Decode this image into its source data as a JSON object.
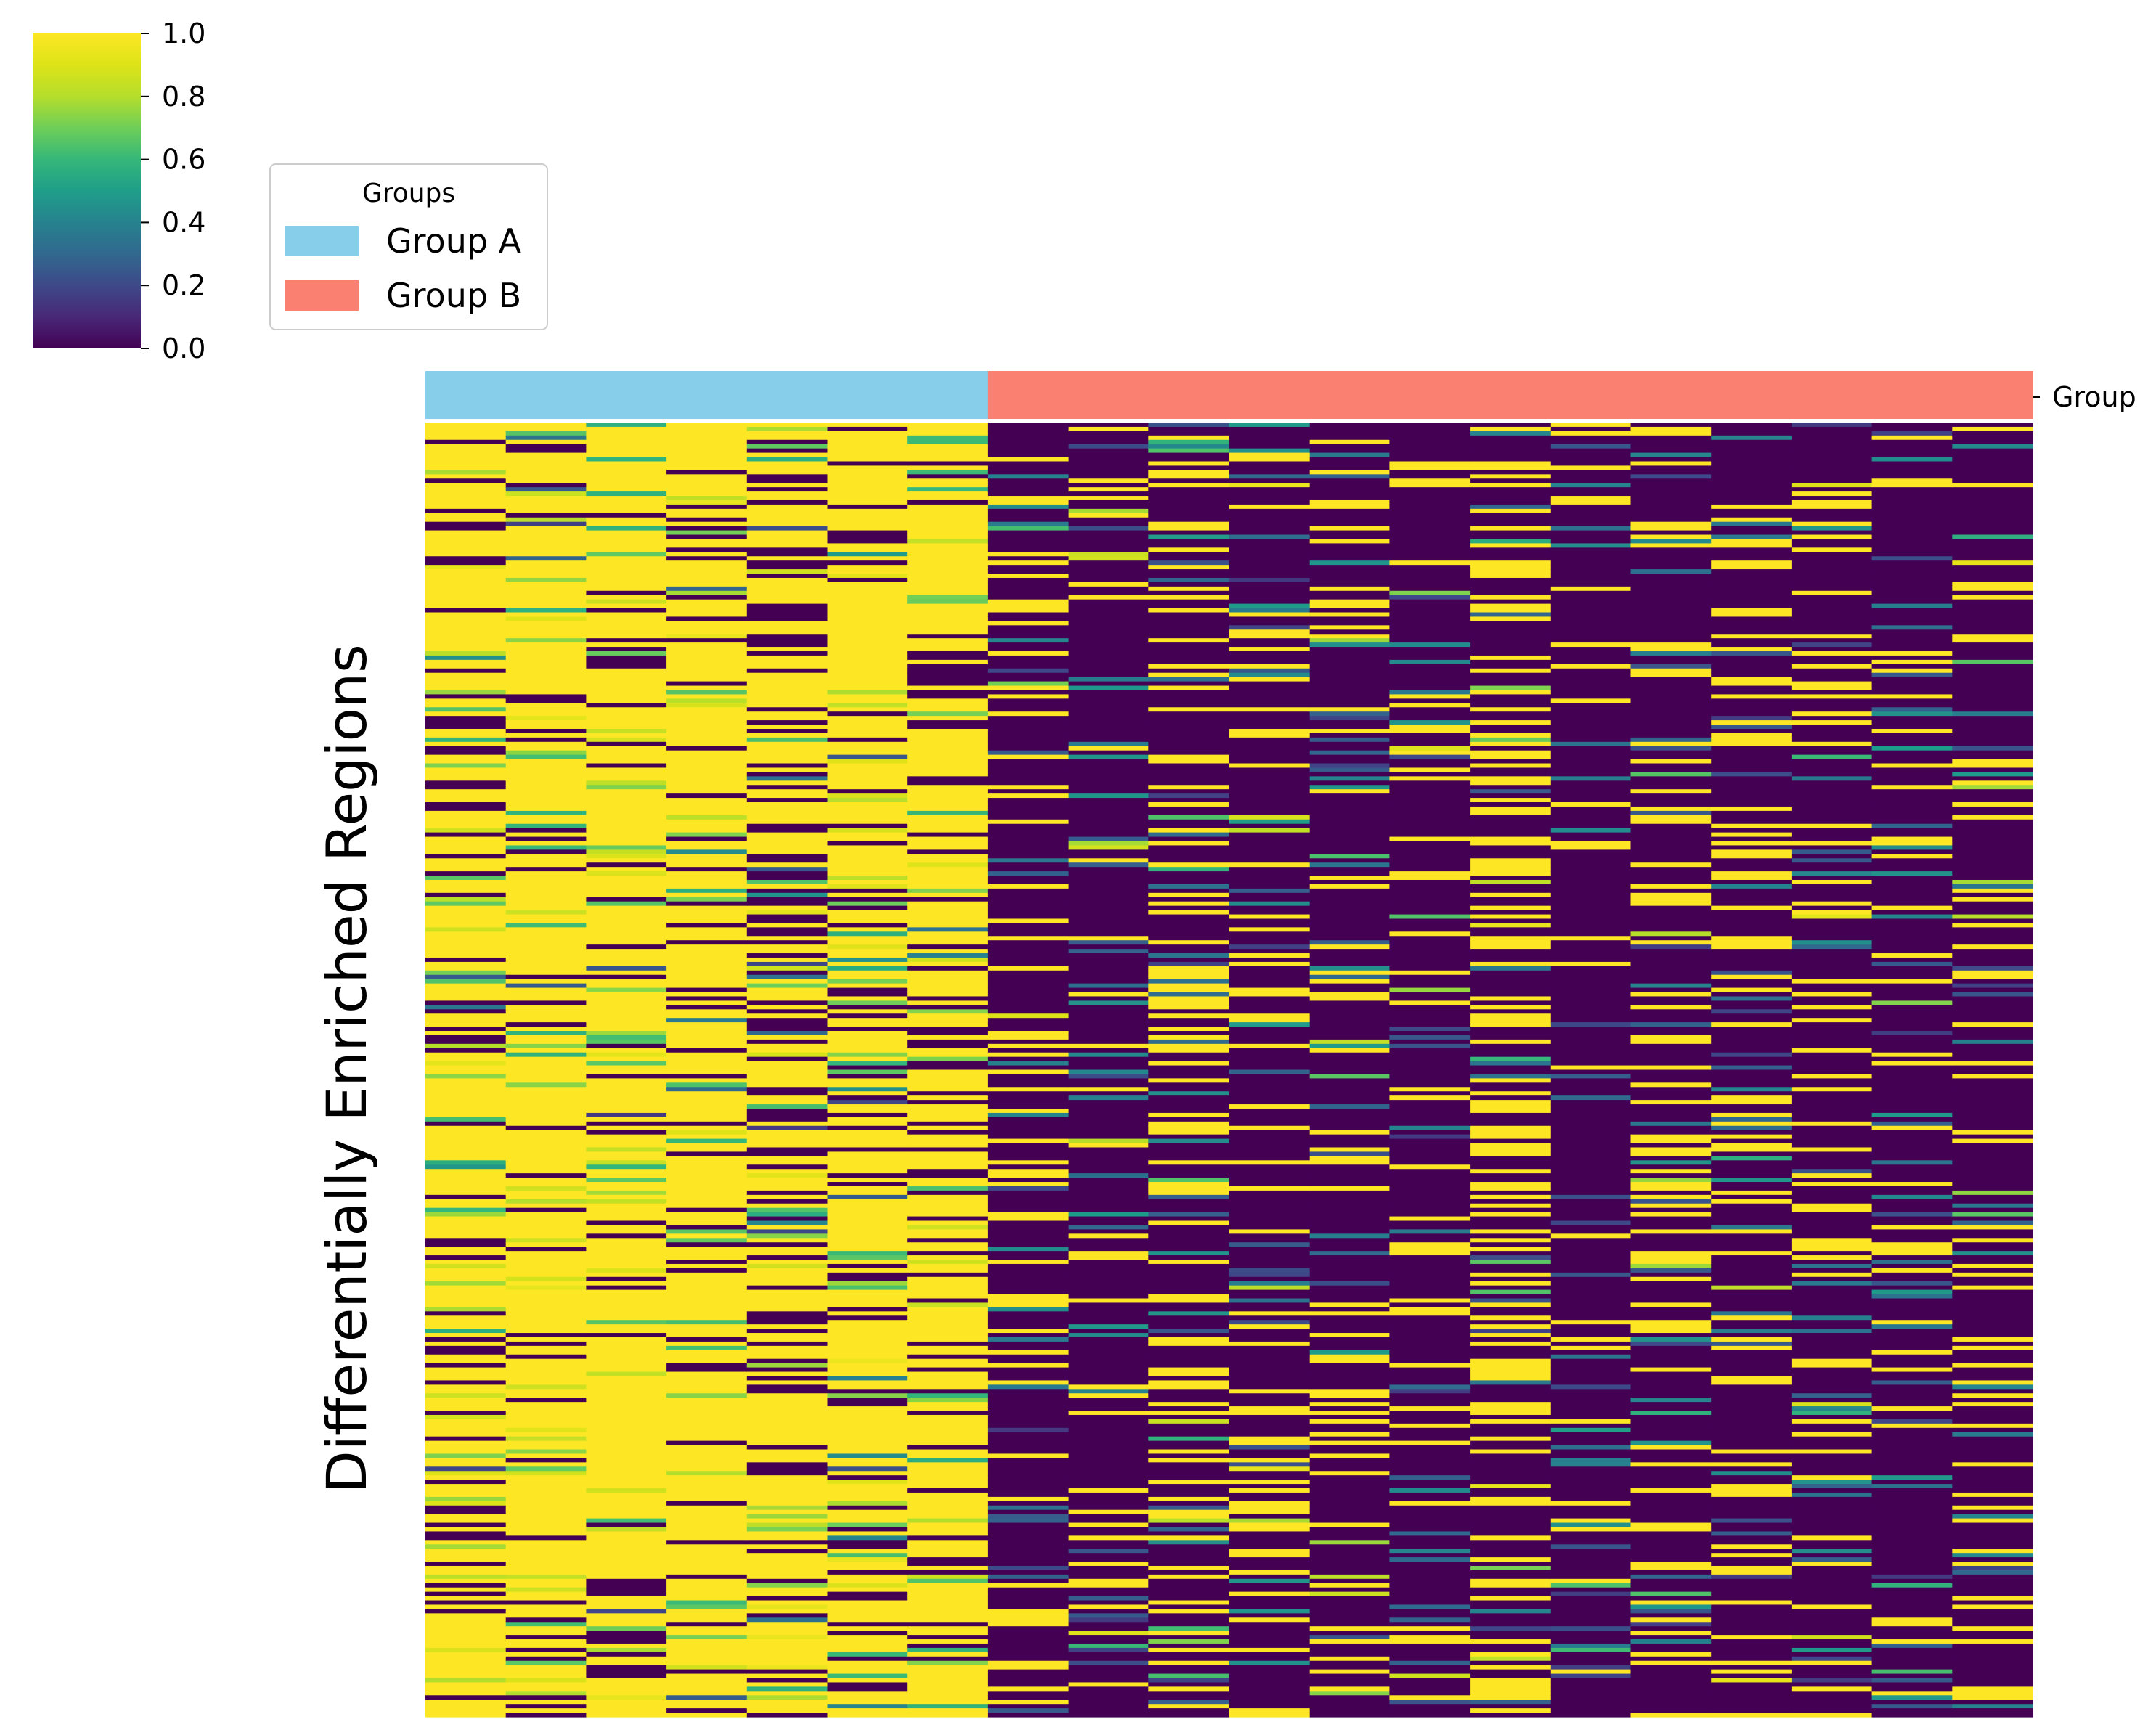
{
  "chart_data": {
    "type": "heatmap",
    "title": "",
    "ylabel": "Differentially Enriched Regions",
    "xlabel": "",
    "colormap": "viridis",
    "colorbar": {
      "range": [
        0.0,
        1.0
      ],
      "ticks": [
        "0.0",
        "0.2",
        "0.4",
        "0.6",
        "0.8",
        "1.0"
      ]
    },
    "group_bar": {
      "label": "Group",
      "columns": [
        "Group A",
        "Group A",
        "Group A",
        "Group A",
        "Group A",
        "Group A",
        "Group A",
        "Group B",
        "Group B",
        "Group B",
        "Group B",
        "Group B",
        "Group B",
        "Group B",
        "Group B",
        "Group B",
        "Group B",
        "Group B",
        "Group B",
        "Group B"
      ]
    },
    "legend": {
      "title": "Groups",
      "placement": "top-left",
      "entries": [
        {
          "label": "Group A",
          "color": "#87ceeb"
        },
        {
          "label": "Group B",
          "color": "#fa8072"
        }
      ]
    },
    "columns": 20,
    "rows": 300,
    "column_mean_values": [
      0.78,
      0.85,
      0.9,
      0.88,
      0.68,
      0.8,
      0.82,
      0.22,
      0.1,
      0.32,
      0.22,
      0.18,
      0.15,
      0.38,
      0.08,
      0.25,
      0.22,
      0.2,
      0.18,
      0.24
    ],
    "grid": false
  }
}
